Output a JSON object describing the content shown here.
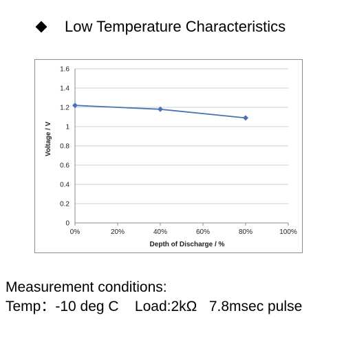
{
  "heading": "Low Temperature Characteristics",
  "bullet_icon": "diamond-bullet-icon",
  "chart_data": {
    "type": "line",
    "x": [
      0,
      40,
      80
    ],
    "series": [
      {
        "values": [
          1.22,
          1.18,
          1.09
        ],
        "color": "#4a72b5"
      }
    ],
    "xlabel": "Depth of Discharge / %",
    "ylabel": "Voltage / V",
    "xlim": [
      0,
      100
    ],
    "ylim": [
      0,
      1.6
    ],
    "x_ticks": [
      "0%",
      "20%",
      "40%",
      "60%",
      "80%",
      "100%"
    ],
    "y_ticks": [
      "0",
      "0.2",
      "0.4",
      "0.6",
      "0.8",
      "1",
      "1.2",
      "1.4",
      "1.6"
    ],
    "x_tick_values": [
      0,
      20,
      40,
      60,
      80,
      100
    ],
    "y_tick_values": [
      0,
      0.2,
      0.4,
      0.6,
      0.8,
      1.0,
      1.2,
      1.4,
      1.6
    ],
    "grid": "horizontal",
    "marker": "diamond"
  },
  "conditions": {
    "line1": "Measurement conditions:",
    "line2": "Temp：-10 deg C    Load:2kΩ   7.8msec pulse"
  }
}
